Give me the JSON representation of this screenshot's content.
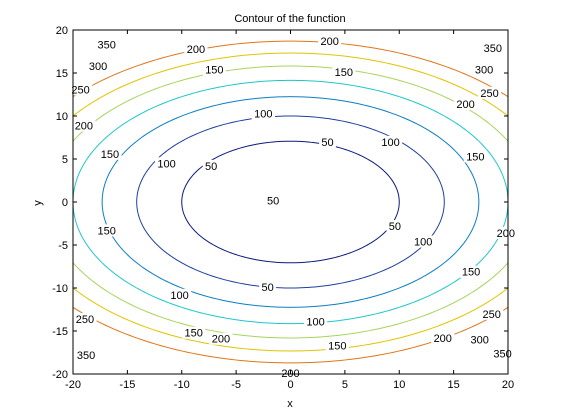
{
  "chart_data": {
    "type": "contour",
    "title": "Contour of the function",
    "xlabel": "x",
    "ylabel": "y",
    "xlim": [
      -20,
      20
    ],
    "ylim": [
      -20,
      20
    ],
    "xticks": [
      -20,
      -15,
      -10,
      -5,
      0,
      5,
      10,
      15,
      20
    ],
    "yticks": [
      -20,
      -15,
      -10,
      -5,
      0,
      5,
      10,
      15,
      20
    ],
    "grid": false,
    "function": "x^2/2 + y^2",
    "levels": [
      {
        "value": 50,
        "label": "50",
        "color": "#0b1a80",
        "labels": [
          {
            "x": 3.4,
            "y": 7.0
          },
          {
            "x": -7.3,
            "y": 4.2
          },
          {
            "x": -1.6,
            "y": 0.2
          },
          {
            "x": 9.6,
            "y": -2.8
          },
          {
            "x": -2.1,
            "y": -9.9
          }
        ]
      },
      {
        "value": 100,
        "label": "100",
        "color": "#1f3fa0",
        "labels": [
          {
            "x": -2.5,
            "y": 10.3
          },
          {
            "x": 9.2,
            "y": 7.0
          },
          {
            "x": -11.4,
            "y": 4.5
          },
          {
            "x": 12.2,
            "y": -4.6
          },
          {
            "x": -10.2,
            "y": -10.8
          },
          {
            "x": 2.3,
            "y": -13.9
          }
        ]
      },
      {
        "value": 150,
        "label": "150",
        "color": "#0b7fc4",
        "labels": [
          {
            "x": -7.0,
            "y": 15.4
          },
          {
            "x": 4.9,
            "y": 15.1
          },
          {
            "x": -16.6,
            "y": 5.6
          },
          {
            "x": 17.0,
            "y": 5.3
          },
          {
            "x": -16.9,
            "y": -3.3
          },
          {
            "x": 16.6,
            "y": -8.1
          },
          {
            "x": -8.9,
            "y": -15.2
          },
          {
            "x": 4.3,
            "y": -16.7
          }
        ]
      },
      {
        "value": 200,
        "label": "200",
        "color": "#1fc8c8",
        "labels": [
          {
            "x": -8.7,
            "y": 17.8
          },
          {
            "x": 3.6,
            "y": 18.7
          },
          {
            "x": -19.0,
            "y": 8.9
          },
          {
            "x": 16.1,
            "y": 11.4
          },
          {
            "x": 19.8,
            "y": -3.6
          },
          {
            "x": -6.4,
            "y": -15.9
          },
          {
            "x": 14.0,
            "y": -15.8
          },
          {
            "x": 0.0,
            "y": -19.9
          }
        ]
      },
      {
        "value": 250,
        "label": "250",
        "color": "#a7d55a",
        "labels": [
          {
            "x": -19.3,
            "y": 13.1
          },
          {
            "x": 18.3,
            "y": 12.7
          },
          {
            "x": -18.9,
            "y": -13.6
          },
          {
            "x": 18.5,
            "y": -13.0
          }
        ]
      },
      {
        "value": 300,
        "label": "300",
        "color": "#e0c400",
        "labels": [
          {
            "x": -17.7,
            "y": 15.8
          },
          {
            "x": 17.8,
            "y": 15.4
          },
          {
            "x": 17.4,
            "y": -16.0
          }
        ]
      },
      {
        "value": 350,
        "label": "350",
        "color": "#e0761a",
        "labels": [
          {
            "x": -16.9,
            "y": 18.3
          },
          {
            "x": 18.6,
            "y": 17.9
          },
          {
            "x": -18.8,
            "y": -17.8
          },
          {
            "x": 19.5,
            "y": -17.6
          }
        ]
      }
    ]
  }
}
